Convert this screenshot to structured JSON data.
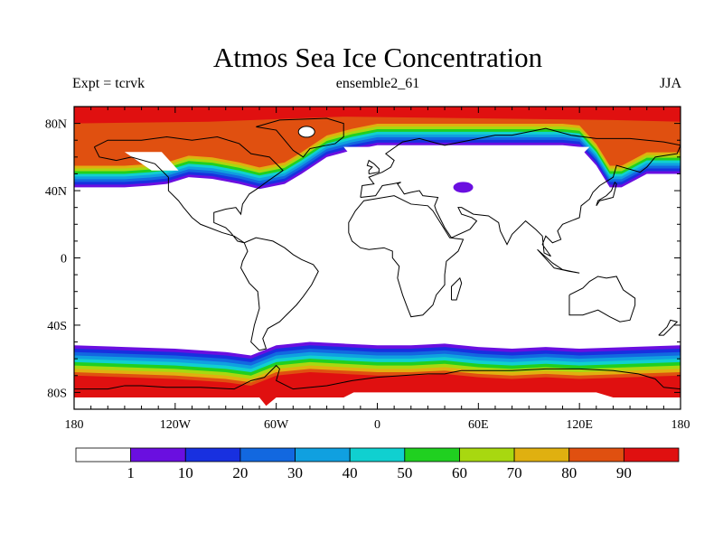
{
  "chart_data": {
    "type": "heatmap",
    "title": "Atmos Sea Ice Concentration",
    "subtitle_left": "Expt = tcrvk",
    "subtitle_center": "ensemble2_61",
    "subtitle_right": "JJA",
    "x_ticks": [
      {
        "value": -180,
        "label": "180"
      },
      {
        "value": -120,
        "label": "120W"
      },
      {
        "value": -60,
        "label": "60W"
      },
      {
        "value": 0,
        "label": "0"
      },
      {
        "value": 60,
        "label": "60E"
      },
      {
        "value": 120,
        "label": "120E"
      },
      {
        "value": 180,
        "label": "180"
      }
    ],
    "y_ticks": [
      {
        "value": 80,
        "label": "80N"
      },
      {
        "value": 40,
        "label": "40N"
      },
      {
        "value": 0,
        "label": "0"
      },
      {
        "value": -40,
        "label": "40S"
      },
      {
        "value": -80,
        "label": "80S"
      }
    ],
    "xlim": [
      -180,
      180
    ],
    "ylim": [
      -90,
      90
    ],
    "colorbar": {
      "levels": [
        "1",
        "10",
        "20",
        "30",
        "40",
        "50",
        "60",
        "70",
        "80",
        "90"
      ],
      "colors": [
        "#ffffff",
        "#6a0fe0",
        "#1830e0",
        "#1268e0",
        "#10a0e0",
        "#10d0d0",
        "#20d020",
        "#a8d810",
        "#e0b010",
        "#e05010",
        "#e01010"
      ]
    },
    "north_band_colors": [
      "#6a0fe0",
      "#1830e0",
      "#1268e0",
      "#10a0e0",
      "#10d0d0",
      "#20d020",
      "#a8d810",
      "#e0b010",
      "#e05010"
    ],
    "south_band_colors": [
      "#6a0fe0",
      "#1830e0",
      "#1268e0",
      "#10a0e0",
      "#10d0d0",
      "#20d020",
      "#a8d810",
      "#e0b010",
      "#e05010",
      "#e01010"
    ]
  }
}
